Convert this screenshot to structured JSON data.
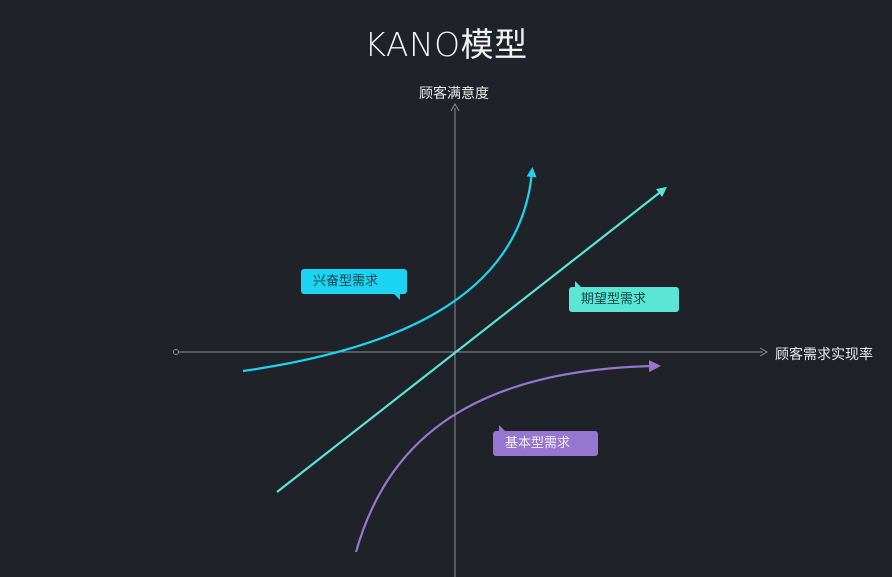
{
  "title": "KANO模型",
  "axes": {
    "y_label": "顾客满意度",
    "x_label": "顾客需求实现率"
  },
  "curves": [
    {
      "label": "兴奋型需求",
      "color": "#1bd4f1"
    },
    {
      "label": "期望型需求",
      "color": "#5ae5d5"
    },
    {
      "label": "基本型需求",
      "color": "#9677cf"
    }
  ],
  "colors": {
    "background": "#1f2228",
    "axis": "#8a8e96"
  }
}
